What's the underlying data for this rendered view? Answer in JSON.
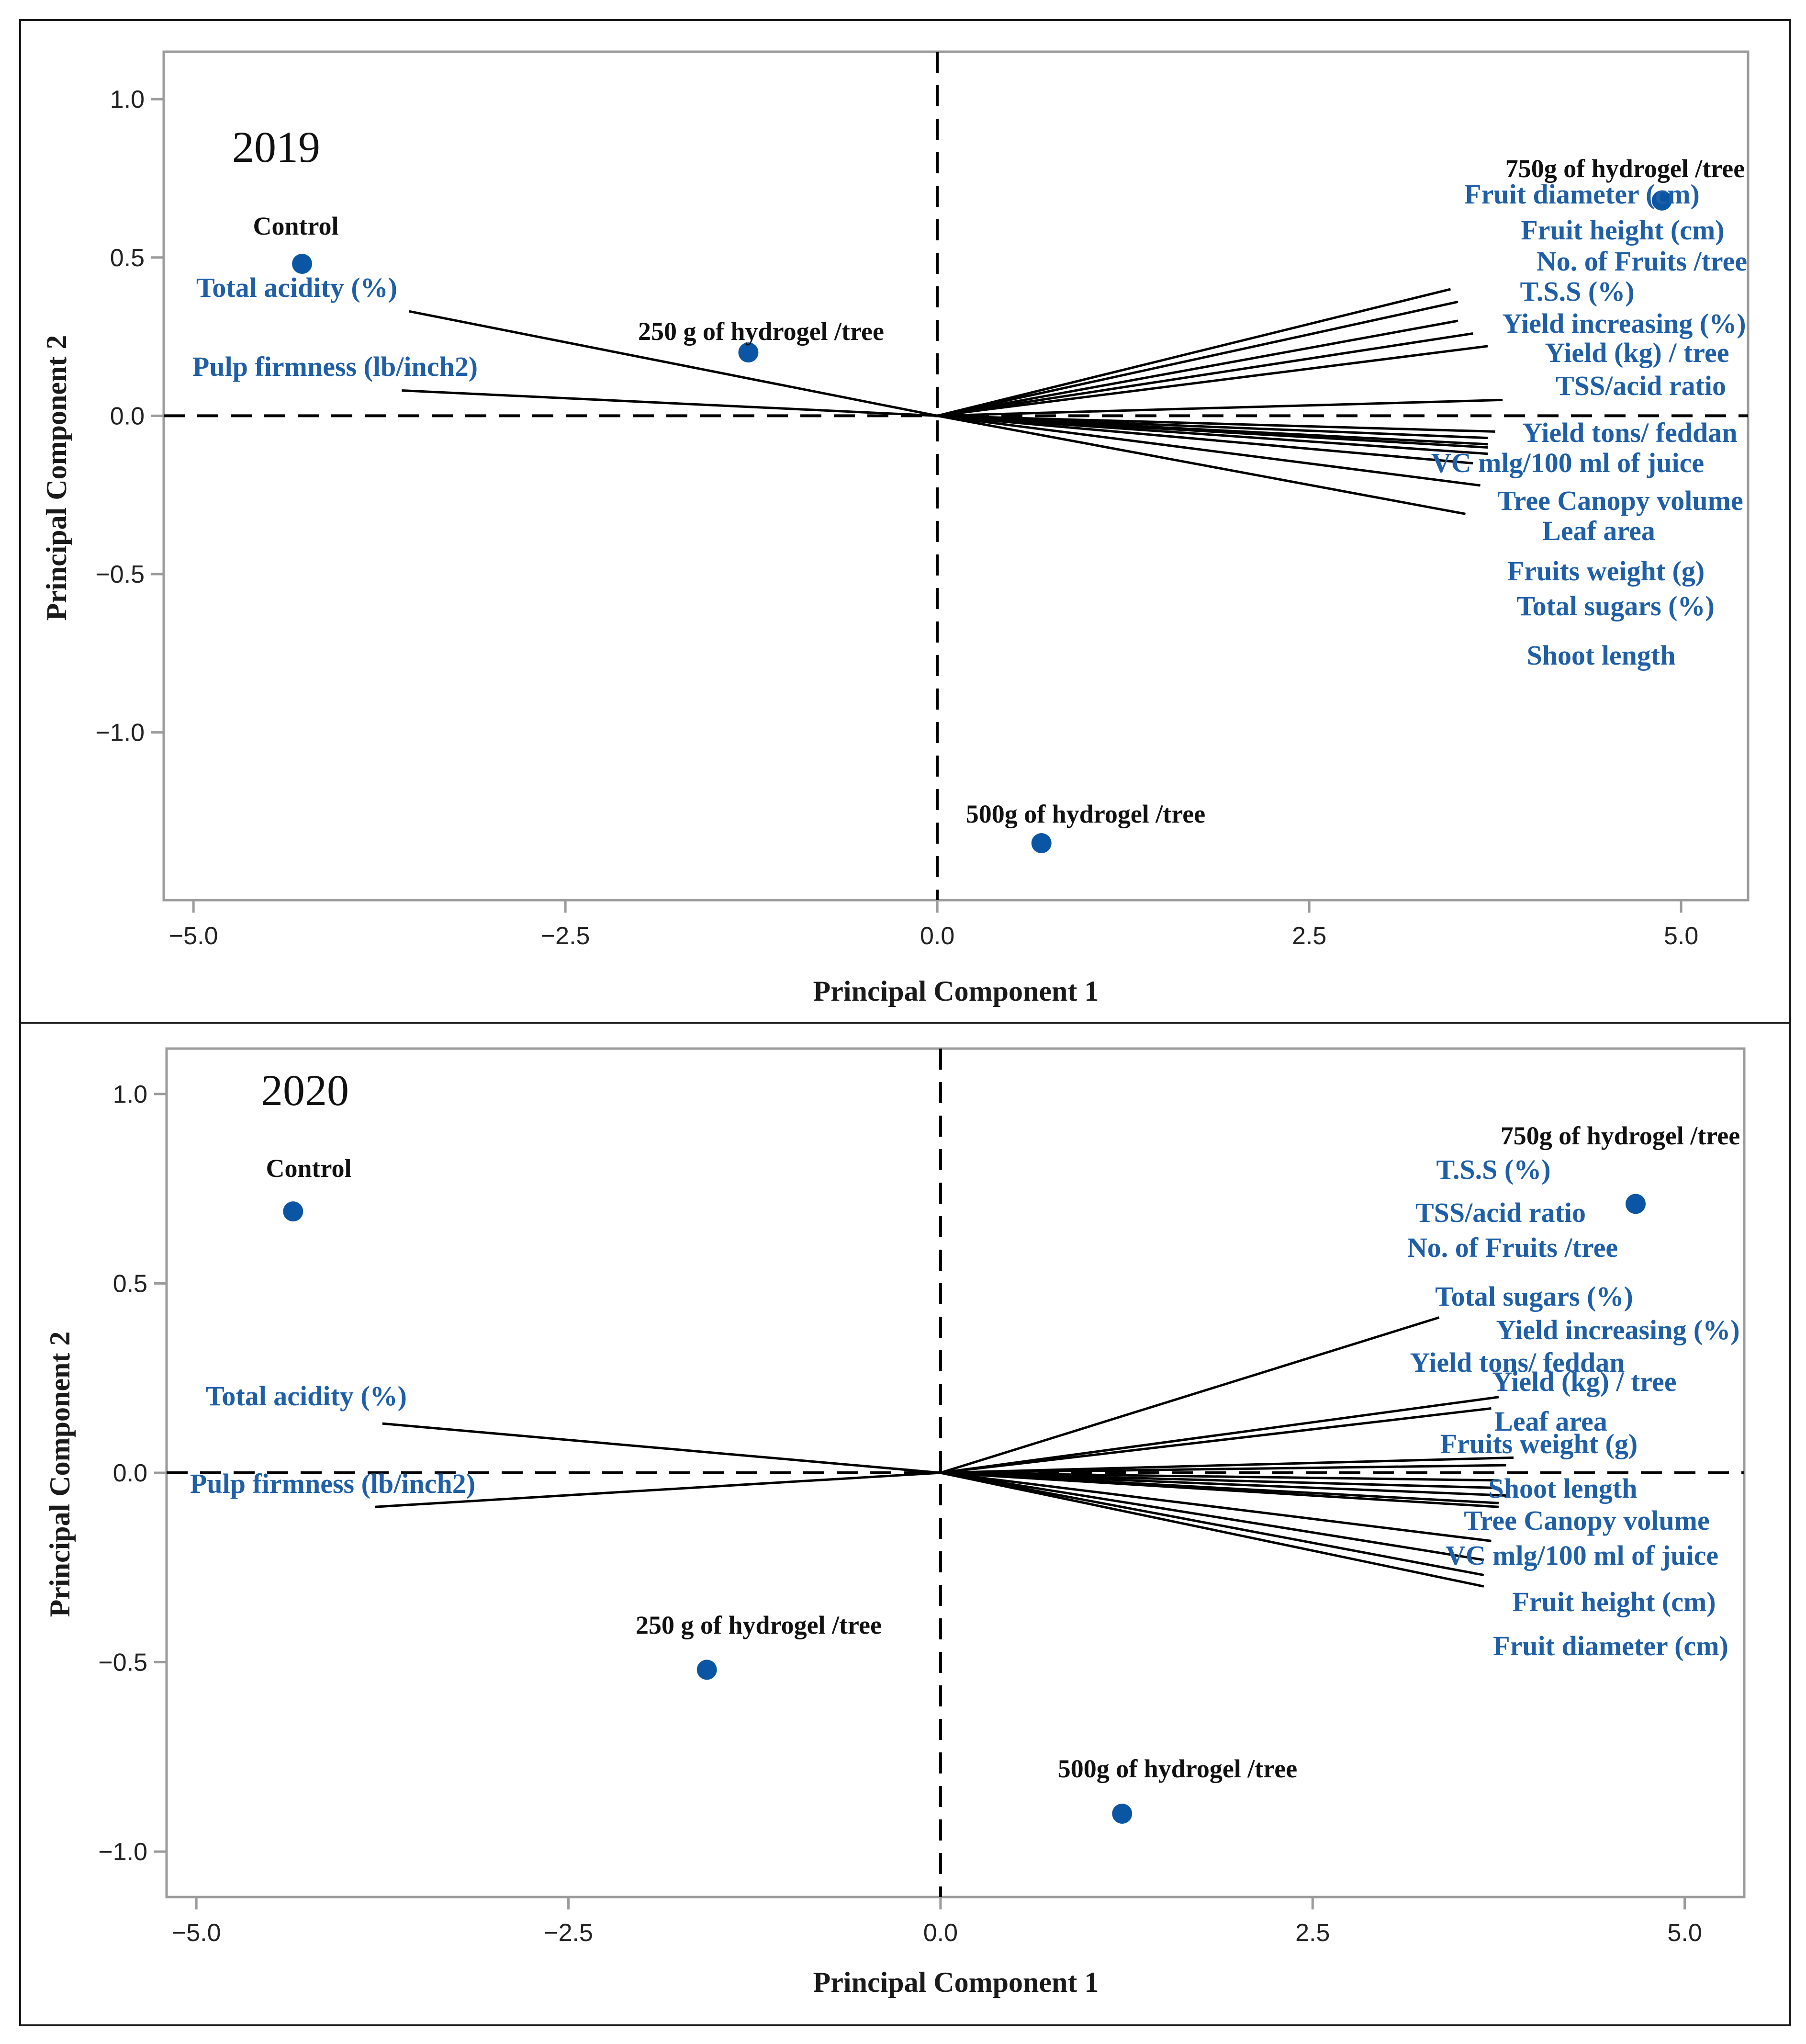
{
  "chart_data": [
    {
      "type": "scatter",
      "title": "2019",
      "xlabel": "Principal Component 1",
      "ylabel": "Principal Component 2",
      "xlim": [
        -5.2,
        5.45
      ],
      "ylim": [
        -1.53,
        1.15
      ],
      "xticks": [
        -5.0,
        -2.5,
        0.0,
        2.5,
        5.0
      ],
      "xtick_labels": [
        "−5.0",
        "−2.5",
        "0.0",
        "2.5",
        "5.0"
      ],
      "yticks": [
        1.0,
        0.5,
        0.0,
        -0.5,
        -1.0
      ],
      "ytick_labels": [
        "1.0",
        "0.5",
        "0.0",
        "−0.5",
        "−1.0"
      ],
      "point_color": "#0b56a4",
      "variable_color": "#1f5fa8",
      "treatments": [
        {
          "name": "Control",
          "x": -4.27,
          "y": 0.48
        },
        {
          "name": "250 g of hydrogel /tree",
          "x": -1.27,
          "y": 0.2
        },
        {
          "name": "500g of hydrogel /tree",
          "x": 0.7,
          "y": -1.35
        },
        {
          "name": "750g of hydrogel /tree",
          "x": 4.87,
          "y": 0.68
        }
      ],
      "vectors": [
        {
          "name": "Total acidity (%)",
          "x": -3.55,
          "y": 0.33
        },
        {
          "name": "Pulp firmness (lb/inch2)",
          "x": -3.6,
          "y": 0.08
        },
        {
          "name": "Fruit diameter (cm)",
          "x": 3.45,
          "y": 0.4
        },
        {
          "name": "Fruit height (cm)",
          "x": 3.5,
          "y": 0.36
        },
        {
          "name": "No. of Fruits /tree",
          "x": 3.5,
          "y": 0.3
        },
        {
          "name": "T.S.S (%)",
          "x": 3.6,
          "y": 0.26
        },
        {
          "name": "Yield increasing  (%)",
          "x": 3.7,
          "y": 0.22
        },
        {
          "name": "Yield (kg) / tree",
          "x": 3.8,
          "y": 0.05
        },
        {
          "name": "TSS/acid ratio",
          "x": 3.75,
          "y": -0.05
        },
        {
          "name": "Yield tons/ feddan",
          "x": 3.7,
          "y": -0.09
        },
        {
          "name": "VC mlg/100 ml of juice",
          "x": 3.7,
          "y": -0.12
        },
        {
          "name": "Tree Canopy volume",
          "x": 3.65,
          "y": -0.22
        },
        {
          "name": "Leaf area",
          "x": 3.55,
          "y": -0.31
        },
        {
          "name": "Fruits weight (g)",
          "x": 3.7,
          "y": -0.07
        },
        {
          "name": "Total sugars (%)",
          "x": 3.7,
          "y": -0.1
        },
        {
          "name": "Shoot length",
          "x": 3.6,
          "y": -0.15
        }
      ]
    },
    {
      "type": "scatter",
      "title": "2020",
      "xlabel": "Principal Component 1",
      "ylabel": "Principal Component 2",
      "xlim": [
        -5.2,
        5.4
      ],
      "ylim": [
        -1.12,
        1.12
      ],
      "xticks": [
        -5.0,
        -2.5,
        0.0,
        2.5,
        5.0
      ],
      "xtick_labels": [
        "−5.0",
        "−2.5",
        "0.0",
        "2.5",
        "5.0"
      ],
      "yticks": [
        1.0,
        0.5,
        0.0,
        -0.5,
        -1.0
      ],
      "ytick_labels": [
        "1.0",
        "0.5",
        "0.0",
        "−0.5",
        "−1.0"
      ],
      "point_color": "#0b56a4",
      "variable_color": "#1f5fa8",
      "treatments": [
        {
          "name": "Control",
          "x": -4.35,
          "y": 0.69
        },
        {
          "name": "250 g of hydrogel /tree",
          "x": -1.57,
          "y": -0.52
        },
        {
          "name": "500g of hydrogel /tree",
          "x": 1.22,
          "y": -0.9
        },
        {
          "name": "750g of hydrogel /tree",
          "x": 4.67,
          "y": 0.71
        }
      ],
      "vectors": [
        {
          "name": "Total acidity (%)",
          "x": -3.75,
          "y": 0.13
        },
        {
          "name": "Pulp firmness (lb/inch2)",
          "x": -3.8,
          "y": -0.09
        },
        {
          "name": "T.S.S (%)",
          "x": 3.35,
          "y": 0.41
        },
        {
          "name": "TSS/acid ratio",
          "x": 3.75,
          "y": 0.2
        },
        {
          "name": "No. of Fruits /tree",
          "x": 3.7,
          "y": 0.17
        },
        {
          "name": "Total sugars (%)",
          "x": 3.85,
          "y": 0.04
        },
        {
          "name": "Yield increasing  (%)",
          "x": 3.8,
          "y": 0.02
        },
        {
          "name": "Yield tons/ feddan",
          "x": 3.75,
          "y": -0.02
        },
        {
          "name": "Yield (kg) / tree",
          "x": 3.75,
          "y": -0.04
        },
        {
          "name": "Leaf area",
          "x": 3.8,
          "y": -0.06
        },
        {
          "name": "Fruits weight (g)",
          "x": 3.75,
          "y": -0.08
        },
        {
          "name": "Shoot length",
          "x": 3.75,
          "y": -0.09
        },
        {
          "name": "Tree Canopy volume",
          "x": 3.7,
          "y": -0.18
        },
        {
          "name": "VC mlg/100 ml of juice",
          "x": 3.65,
          "y": -0.23
        },
        {
          "name": "Fruit height (cm)",
          "x": 3.65,
          "y": -0.27
        },
        {
          "name": "Fruit diameter (cm)",
          "x": 3.65,
          "y": -0.3
        }
      ]
    }
  ]
}
